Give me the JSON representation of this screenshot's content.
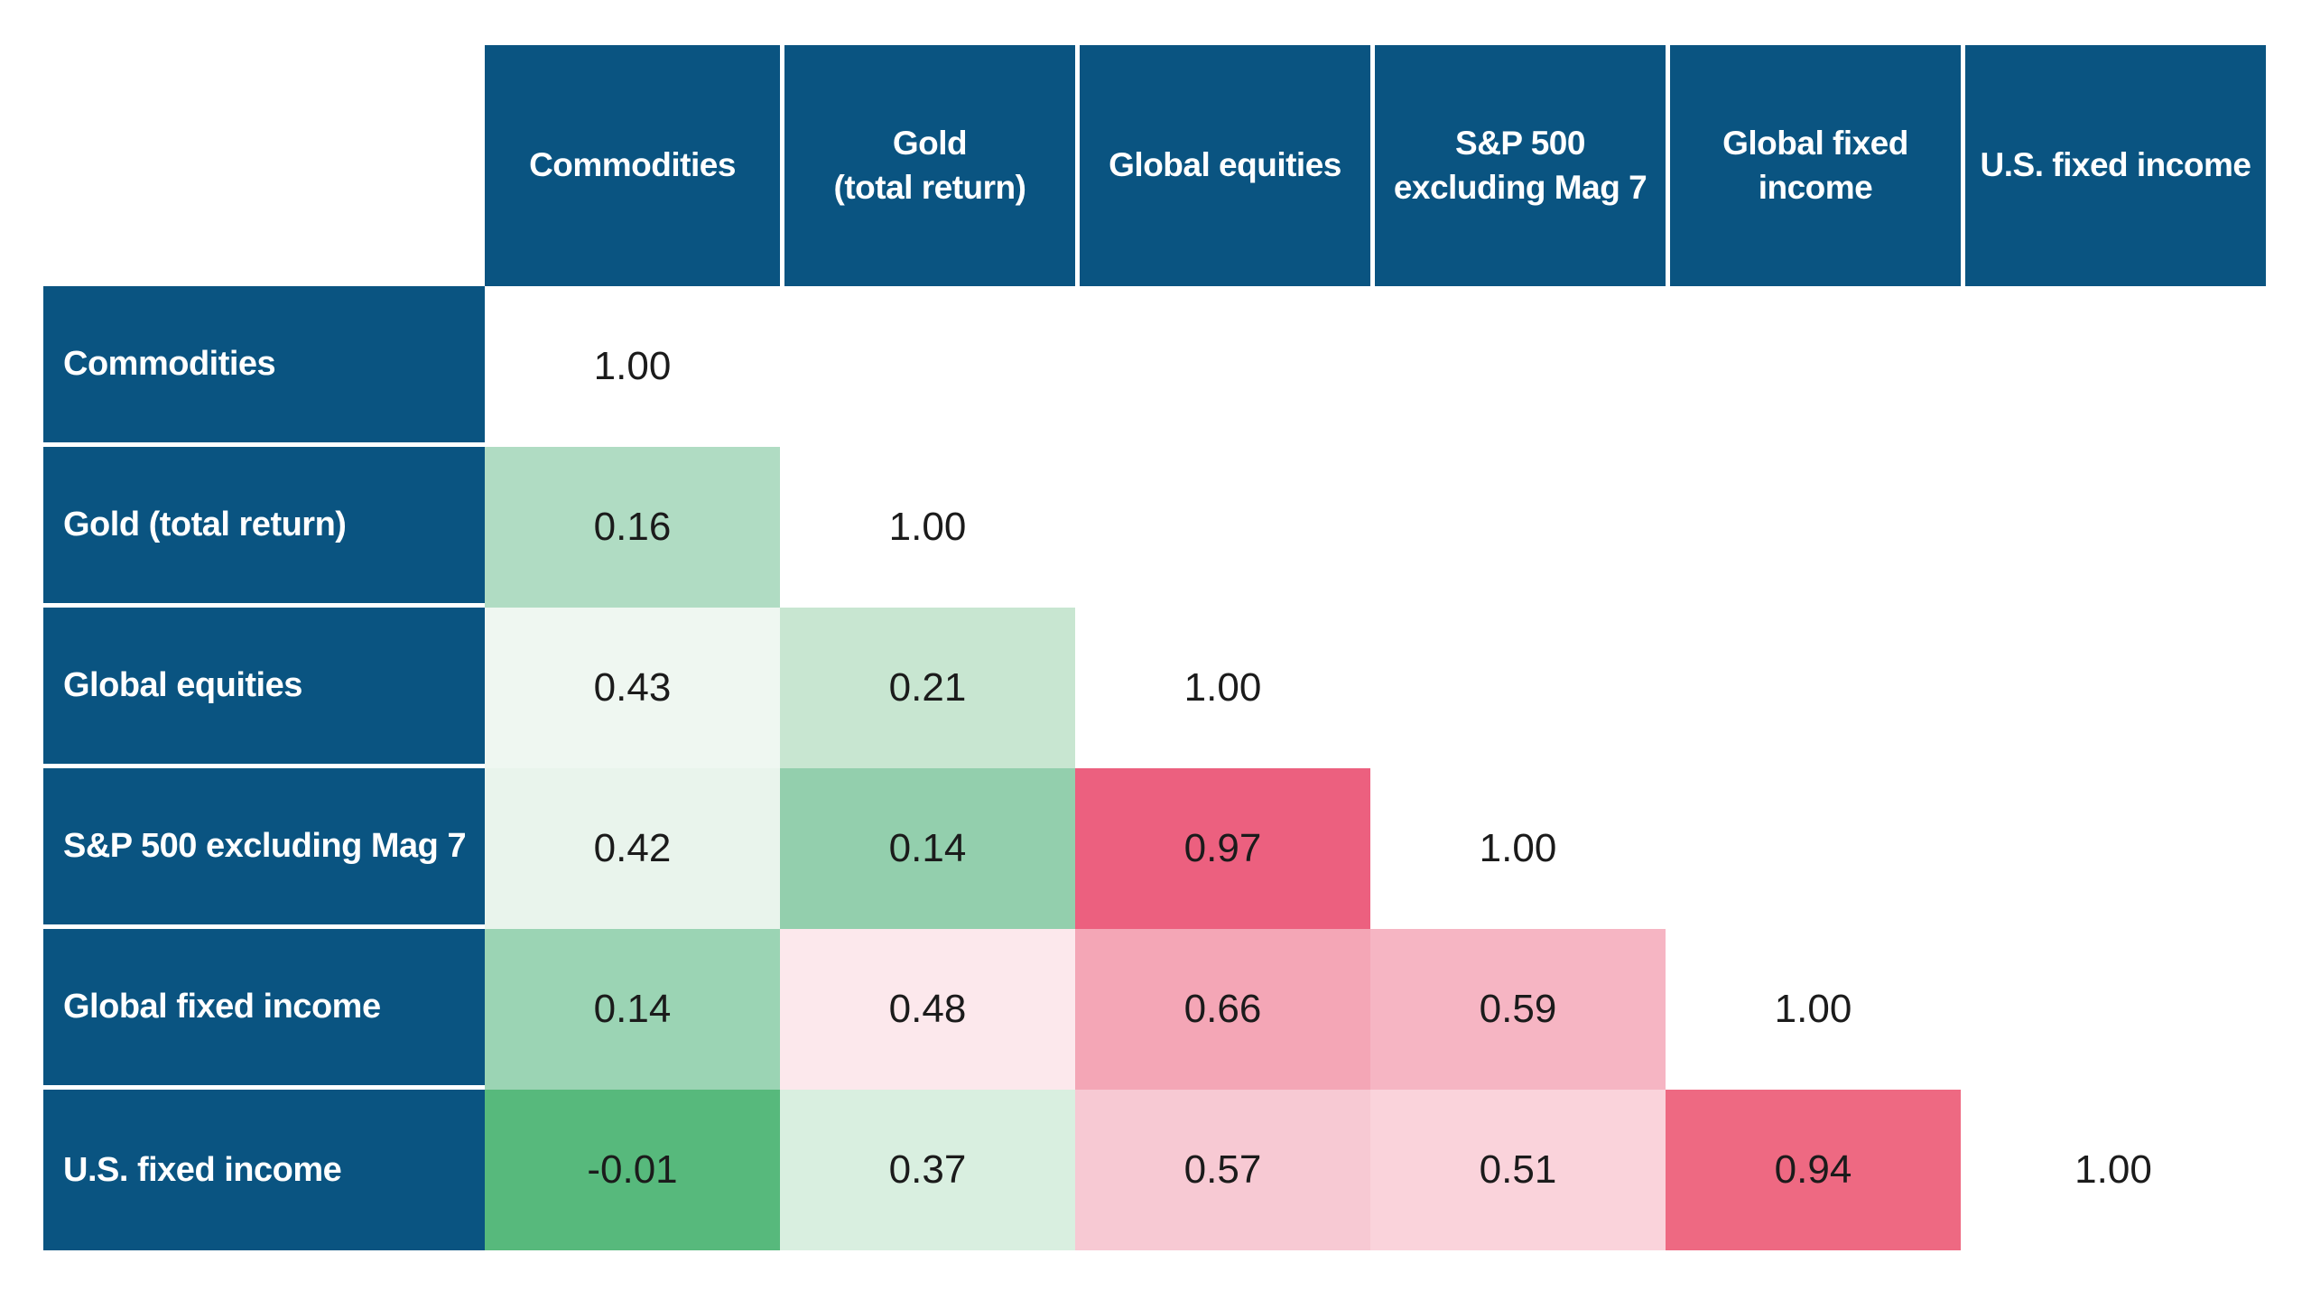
{
  "colors": {
    "header_bg": "#0a5481",
    "header_text": "#ffffff",
    "value_text": "#1b1b1b",
    "background": "#ffffff",
    "strong_positive": "#ec607f",
    "strong_negative": "#57b97c"
  },
  "table": {
    "columns": [
      {
        "label": "Commodities"
      },
      {
        "label": "Gold\n(total return)"
      },
      {
        "label": "Global equities"
      },
      {
        "label": "S&P 500\nexcluding Mag 7"
      },
      {
        "label": "Global fixed\nincome"
      },
      {
        "label": "U.S. fixed income"
      }
    ],
    "rows": [
      {
        "label": "Commodities",
        "cells": [
          {
            "value": "1.00",
            "bg": "#ffffff"
          },
          {
            "value": "",
            "bg": "#ffffff"
          },
          {
            "value": "",
            "bg": "#ffffff"
          },
          {
            "value": "",
            "bg": "#ffffff"
          },
          {
            "value": "",
            "bg": "#ffffff"
          },
          {
            "value": "",
            "bg": "#ffffff"
          }
        ]
      },
      {
        "label": "Gold (total return)",
        "cells": [
          {
            "value": "0.16",
            "bg": "#b0dcc3"
          },
          {
            "value": "1.00",
            "bg": "#ffffff"
          },
          {
            "value": "",
            "bg": "#ffffff"
          },
          {
            "value": "",
            "bg": "#ffffff"
          },
          {
            "value": "",
            "bg": "#ffffff"
          },
          {
            "value": "",
            "bg": "#ffffff"
          }
        ]
      },
      {
        "label": "Global equities",
        "cells": [
          {
            "value": "0.43",
            "bg": "#eff7f1"
          },
          {
            "value": "0.21",
            "bg": "#c8e6d1"
          },
          {
            "value": "1.00",
            "bg": "#ffffff"
          },
          {
            "value": "",
            "bg": "#ffffff"
          },
          {
            "value": "",
            "bg": "#ffffff"
          },
          {
            "value": "",
            "bg": "#ffffff"
          }
        ]
      },
      {
        "label": "S&P 500 excluding Mag 7",
        "cells": [
          {
            "value": "0.42",
            "bg": "#e9f4ec"
          },
          {
            "value": "0.14",
            "bg": "#93cfad"
          },
          {
            "value": "0.97",
            "bg": "#ec607f"
          },
          {
            "value": "1.00",
            "bg": "#ffffff"
          },
          {
            "value": "",
            "bg": "#ffffff"
          },
          {
            "value": "",
            "bg": "#ffffff"
          }
        ]
      },
      {
        "label": "Global fixed income",
        "cells": [
          {
            "value": "0.14",
            "bg": "#9bd4b4"
          },
          {
            "value": "0.48",
            "bg": "#fce8ec"
          },
          {
            "value": "0.66",
            "bg": "#f4a6b6"
          },
          {
            "value": "0.59",
            "bg": "#f6b5c3"
          },
          {
            "value": "1.00",
            "bg": "#ffffff"
          },
          {
            "value": "",
            "bg": "#ffffff"
          }
        ]
      },
      {
        "label": "U.S. fixed income",
        "cells": [
          {
            "value": "-0.01",
            "bg": "#57b97c"
          },
          {
            "value": "0.37",
            "bg": "#d9efe0"
          },
          {
            "value": "0.57",
            "bg": "#f7c9d3"
          },
          {
            "value": "0.51",
            "bg": "#fad3db"
          },
          {
            "value": "0.94",
            "bg": "#ee6982"
          },
          {
            "value": "1.00",
            "bg": "#ffffff"
          }
        ]
      }
    ]
  },
  "chart_data": {
    "type": "heatmap",
    "title": "",
    "layout": "lower-triangular correlation matrix, diagonal = 1.00",
    "legend_position": "none",
    "color_scale": "saturated green = low/negative correlation, white = mid, saturated red/pink = high correlation",
    "categories": [
      "Commodities",
      "Gold (total return)",
      "Global equities",
      "S&P 500 excluding Mag 7",
      "Global fixed income",
      "U.S. fixed income"
    ],
    "matrix": [
      [
        1.0
      ],
      [
        0.16,
        1.0
      ],
      [
        0.43,
        0.21,
        1.0
      ],
      [
        0.42,
        0.14,
        0.97,
        1.0
      ],
      [
        0.14,
        0.48,
        0.66,
        0.59,
        1.0
      ],
      [
        -0.01,
        0.37,
        0.57,
        0.51,
        0.94,
        1.0
      ]
    ]
  }
}
